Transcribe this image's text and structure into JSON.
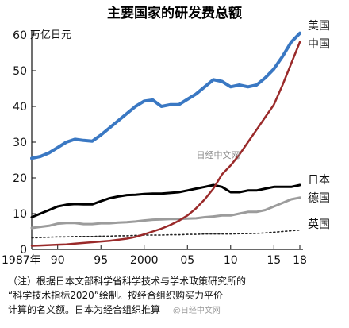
{
  "chart_data": {
    "type": "line",
    "title": "主要国家的研发费总额",
    "ylabel": "万亿日元",
    "ylim": [
      0,
      60
    ],
    "yticks": [
      0,
      10,
      20,
      30,
      40,
      50,
      60
    ],
    "xlim": [
      1987,
      2018
    ],
    "xticks": [
      1987,
      1990,
      1995,
      2000,
      2005,
      2010,
      2015,
      2018
    ],
    "xtick_labels": [
      "1987年",
      "90",
      "95",
      "2000",
      "05",
      "10",
      "15",
      "18"
    ],
    "grid": false,
    "x": [
      1987,
      1988,
      1989,
      1990,
      1991,
      1992,
      1993,
      1994,
      1995,
      1996,
      1997,
      1998,
      1999,
      2000,
      2001,
      2002,
      2003,
      2004,
      2005,
      2006,
      2007,
      2008,
      2009,
      2010,
      2011,
      2012,
      2013,
      2014,
      2015,
      2016,
      2017,
      2018
    ],
    "series": [
      {
        "name": "美国",
        "color": "#3a78c3",
        "width": 4,
        "dash": "",
        "values": [
          25.5,
          26,
          27,
          28.5,
          30,
          30.8,
          30.5,
          30.3,
          32,
          34,
          36,
          38,
          40,
          41.5,
          41.8,
          40,
          40.5,
          40.5,
          42,
          43.5,
          45.5,
          47.5,
          47,
          45.5,
          46,
          45.5,
          46,
          48,
          50.5,
          54,
          58,
          60.5
        ]
      },
      {
        "name": "中国",
        "color": "#9a2a2a",
        "width": 2.5,
        "dash": "",
        "values": [
          1,
          1.1,
          1.2,
          1.3,
          1.4,
          1.6,
          1.8,
          2,
          2.2,
          2.4,
          2.7,
          3,
          3.5,
          4.2,
          5,
          5.8,
          6.8,
          8,
          9.5,
          11.5,
          14,
          17,
          21,
          23.5,
          26.5,
          30,
          33.5,
          37,
          40.5,
          46,
          52,
          58
        ]
      },
      {
        "name": "日本",
        "color": "#000000",
        "width": 3,
        "dash": "",
        "values": [
          9,
          10,
          11,
          12,
          12.5,
          12.7,
          12.6,
          12.6,
          13.5,
          14.3,
          14.8,
          15.2,
          15.3,
          15.5,
          15.6,
          15.6,
          15.8,
          16,
          16.5,
          17,
          17.5,
          18,
          17.5,
          16,
          16,
          16.5,
          16.5,
          17,
          17.5,
          17.5,
          17.5,
          18
        ]
      },
      {
        "name": "德国",
        "color": "#9c9c9c",
        "width": 3,
        "dash": "",
        "values": [
          6,
          6.3,
          6.6,
          7.2,
          7.4,
          7.4,
          7.1,
          7.1,
          7.3,
          7.3,
          7.5,
          7.6,
          7.8,
          8.1,
          8.3,
          8.4,
          8.5,
          8.5,
          8.6,
          8.7,
          9,
          9.2,
          9.5,
          9.5,
          10,
          10.5,
          10.5,
          11,
          12,
          13,
          14,
          14.5
        ]
      },
      {
        "name": "英国",
        "color": "#222222",
        "width": 1.6,
        "dash": "2,3",
        "values": [
          3.2,
          3.3,
          3.4,
          3.5,
          3.5,
          3.6,
          3.6,
          3.6,
          3.7,
          3.7,
          3.8,
          3.8,
          3.9,
          4,
          4,
          4,
          4.1,
          4.1,
          4.2,
          4.2,
          4.3,
          4.3,
          4.3,
          4.3,
          4.4,
          4.4,
          4.5,
          4.6,
          4.8,
          5,
          5.2,
          5.4
        ]
      }
    ]
  },
  "series_labels": {
    "us": "美国",
    "cn": "中国",
    "jp": "日本",
    "de": "德国",
    "uk": "英国"
  },
  "watermark": "日经中文网",
  "note": {
    "line1": "（注）根据日本文部科学省科学技术与学术政策研究所的",
    "line2": "“科学技术指标2020”绘制。按经合组织购买力平价",
    "line3": "计算的名义额。日本为经合组织推算",
    "source_mark": "@日经中文网"
  }
}
